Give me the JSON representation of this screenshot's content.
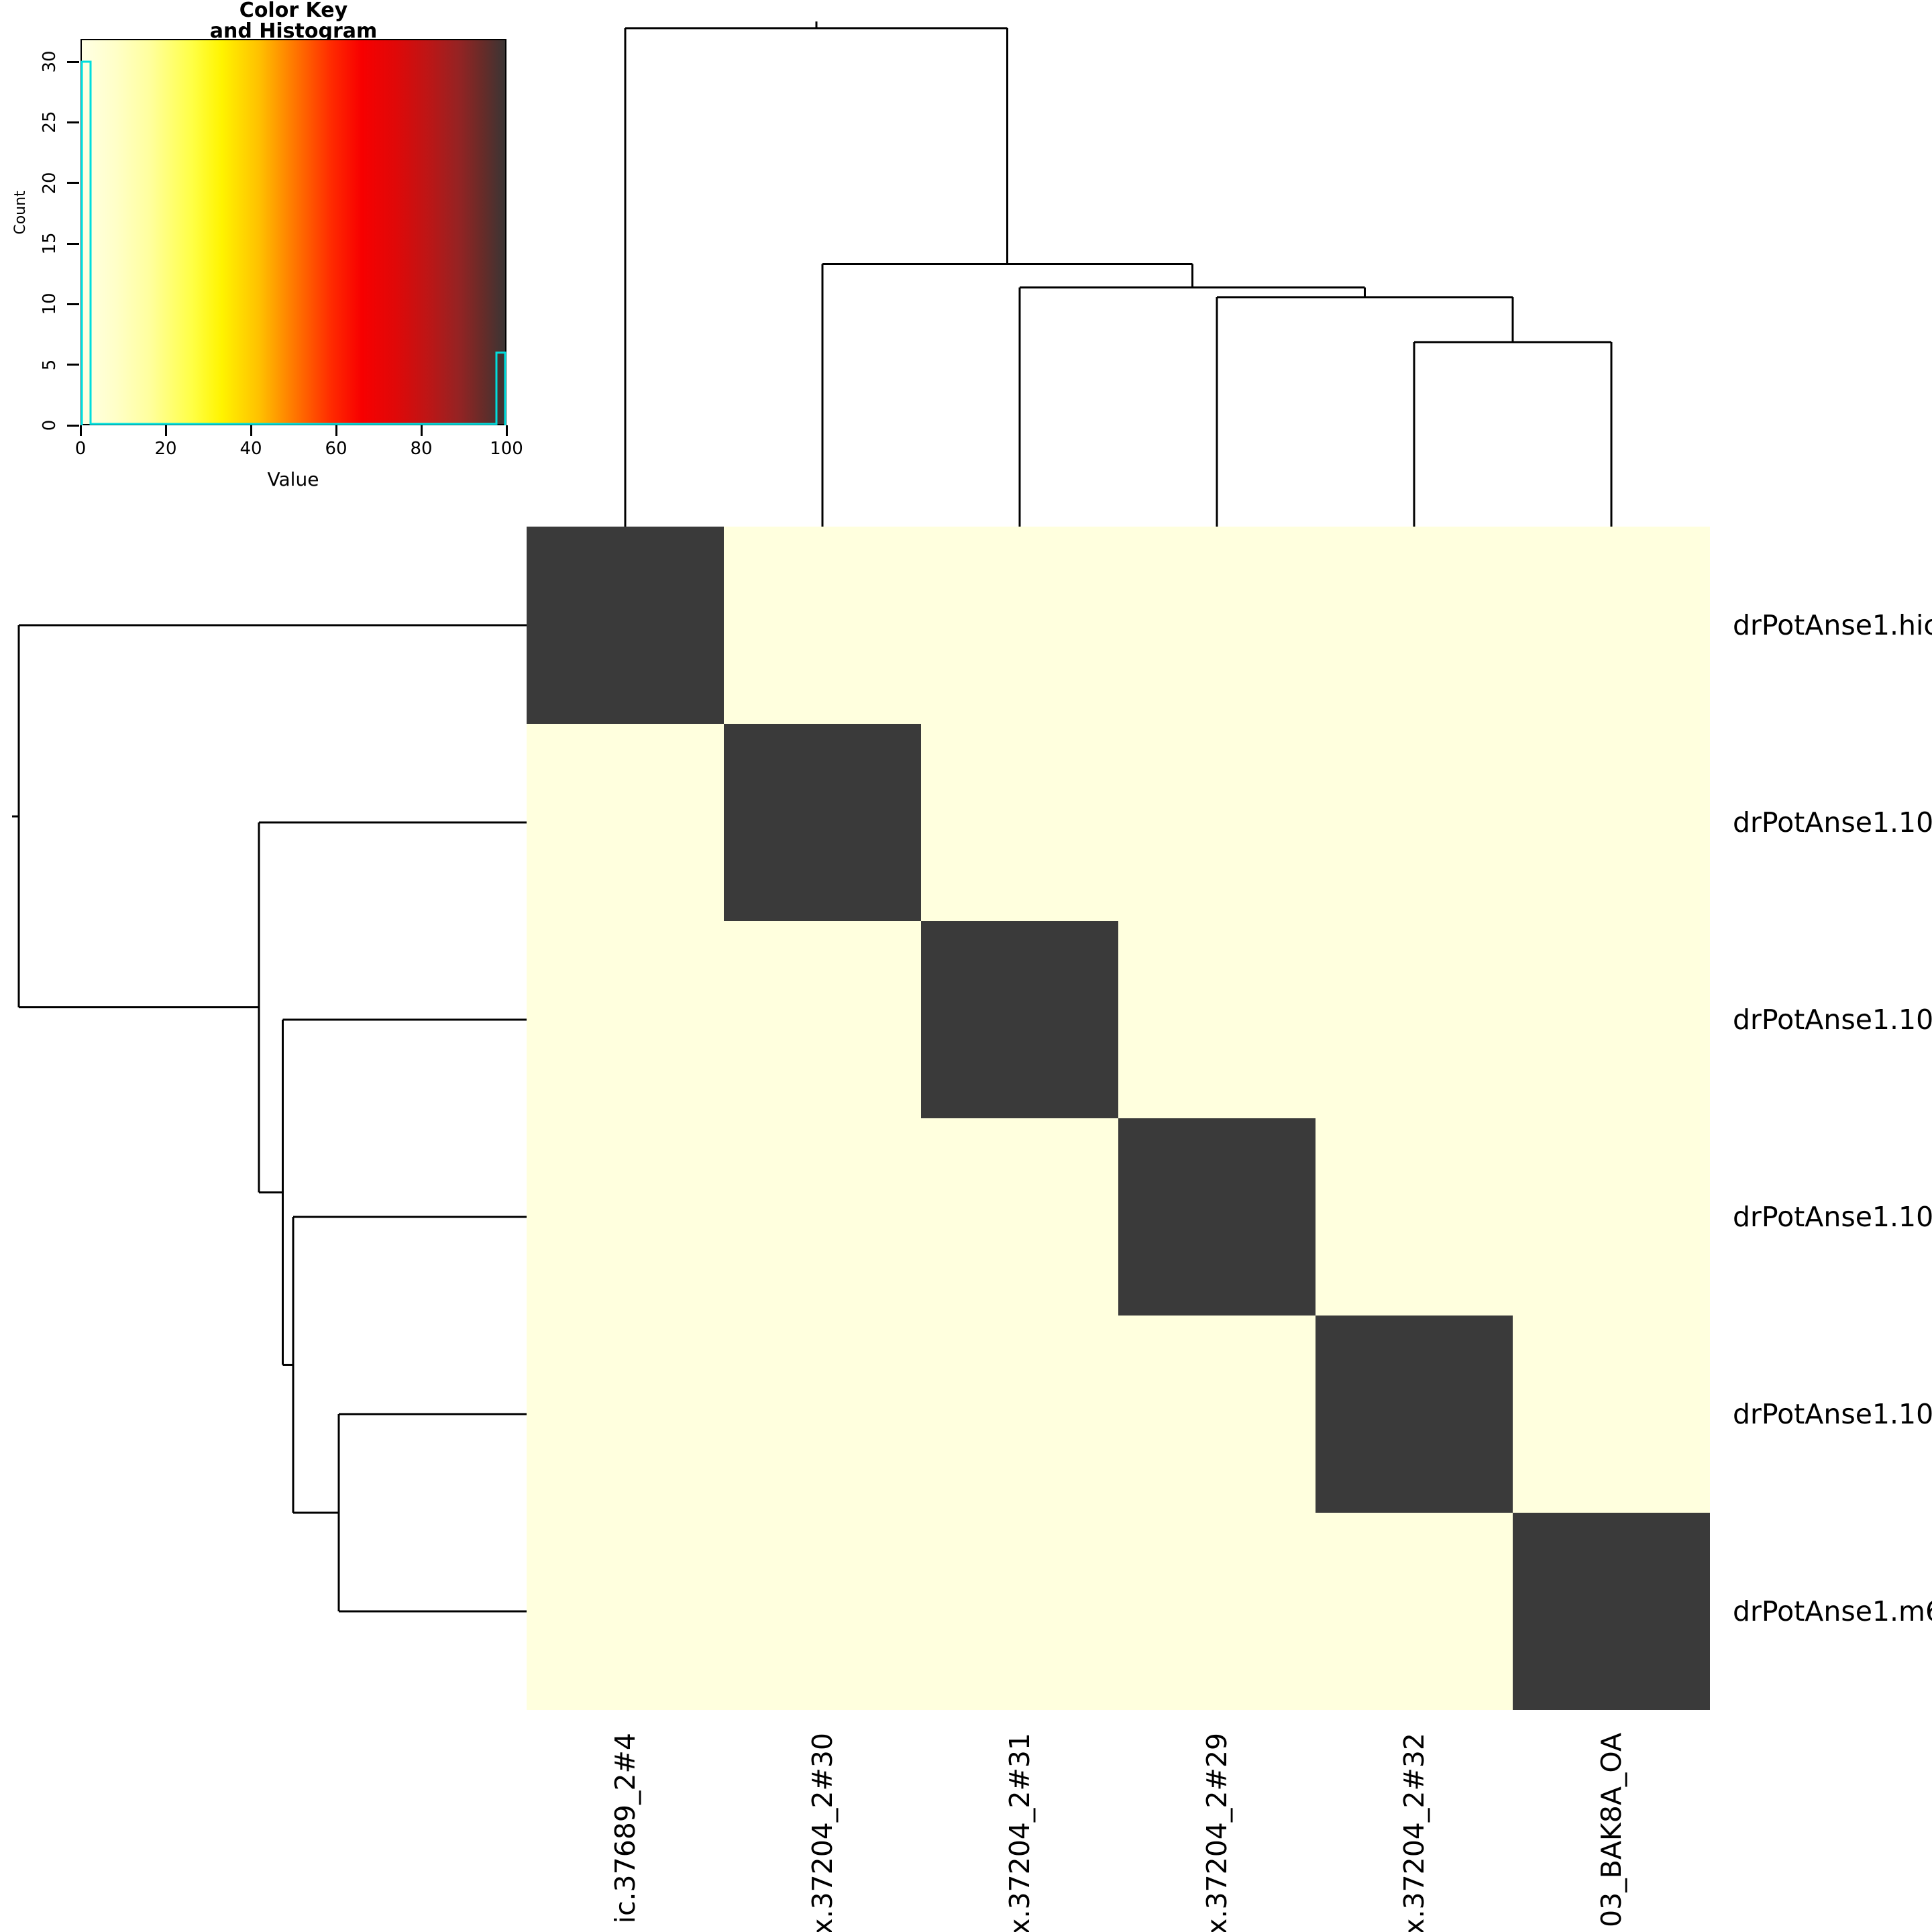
{
  "color_key": {
    "title_lines": [
      "Color Key",
      "and Histogram"
    ],
    "xlabel": "Value",
    "ylabel": "Count",
    "x_ticks": [
      "0",
      "20",
      "40",
      "60",
      "80",
      "100"
    ],
    "y_ticks": [
      "0",
      "5",
      "10",
      "15",
      "20",
      "25",
      "30"
    ],
    "histogram_color": "#00dede",
    "hist_left_count": 30,
    "hist_right_count": 6,
    "count_axis_max": 30,
    "gradient_stops": [
      "#ffffe4 0%",
      "#ffffc8 8%",
      "#ffff9e 16%",
      "#ffff46 26%",
      "#fff400 33%",
      "#ffc000 42%",
      "#ff7000 51%",
      "#ff2a00 59%",
      "#f80000 66%",
      "#e00808 74%",
      "#bc1616 82%",
      "#952323 89%",
      "#652c29 95%",
      "#3a3534 100%"
    ]
  },
  "chart_data": {
    "type": "heatmap",
    "rows": [
      "drPotAnse1.hic",
      "drPotAnse1.10",
      "drPotAnse1.10",
      "drPotAnse1.10",
      "drPotAnse1.10",
      "drPotAnse1.m6"
    ],
    "columns": [
      "ic.37689_2#4",
      "x.37204_2#30",
      "x.37204_2#31",
      "x.37204_2#29",
      "x.37204_2#32",
      "03_BAK8A_OA"
    ],
    "matrix": [
      [
        100,
        0,
        0,
        0,
        0,
        0
      ],
      [
        0,
        100,
        0,
        0,
        0,
        0
      ],
      [
        0,
        0,
        100,
        0,
        0,
        0
      ],
      [
        0,
        0,
        0,
        100,
        0,
        0
      ],
      [
        0,
        0,
        0,
        0,
        100,
        0
      ],
      [
        0,
        0,
        0,
        0,
        0,
        100
      ]
    ],
    "value_range": [
      0,
      100
    ],
    "color_low": "#ffffde",
    "color_high": "#3a3a3a",
    "color_key_histogram": {
      "value_0_count": 30,
      "value_100_count": 6,
      "count_ticks": [
        0,
        5,
        10,
        15,
        20,
        25,
        30
      ],
      "value_ticks": [
        0,
        20,
        40,
        60,
        80,
        100
      ]
    },
    "row_dendrogram_merge_order": "(row1,(row2,(row3,(row4,(row5,row6)))))",
    "col_dendrogram_merge_order": "(col1,(col2,(col3,(col4,(col5,col6)))))",
    "merge_heights_fraction": [
      0.37,
      0.46,
      0.48,
      0.527,
      1.0
    ],
    "dendrogram_tree": {
      "h": 1.0,
      "c": [
        {
          "leaf": 0
        },
        {
          "h": 0.527,
          "c": [
            {
              "leaf": 1
            },
            {
              "h": 0.48,
              "c": [
                {
                  "leaf": 2
                },
                {
                  "h": 0.46,
                  "c": [
                    {
                      "leaf": 3
                    },
                    {
                      "h": 0.37,
                      "c": [
                        {
                          "leaf": 4
                        },
                        {
                          "leaf": 5
                        }
                      ]
                    }
                  ]
                }
              ]
            }
          ]
        }
      ]
    }
  }
}
